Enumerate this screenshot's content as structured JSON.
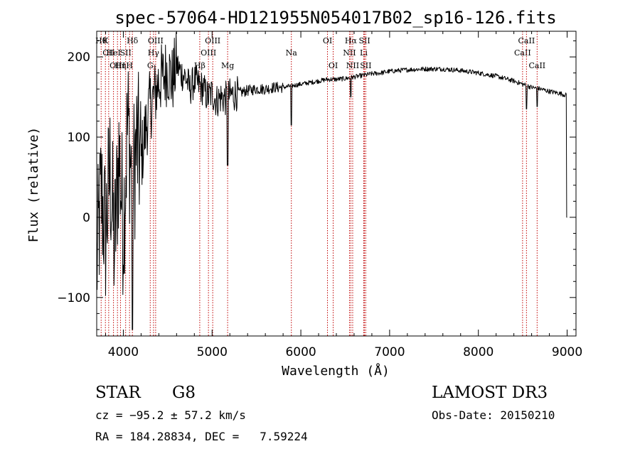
{
  "chart_data": {
    "type": "line",
    "title": "spec-57064-HD121955N054017B02_sp16-126.fits",
    "xlabel": "Wavelength (Å)",
    "ylabel": "Flux (relative)",
    "xlim": [
      3700,
      9100
    ],
    "ylim": [
      -148,
      232
    ],
    "xticks": [
      4000,
      5000,
      6000,
      7000,
      8000,
      9000
    ],
    "yticks": [
      -100,
      0,
      100,
      200
    ],
    "grid": false,
    "series": [
      {
        "name": "flux",
        "x": [
          3700,
          3750,
          3800,
          3850,
          3900,
          3950,
          4000,
          4050,
          4100,
          4150,
          4200,
          4250,
          4300,
          4350,
          4400,
          4450,
          4500,
          4550,
          4600,
          4650,
          4700,
          4750,
          4800,
          4850,
          4900,
          4950,
          5000,
          5050,
          5100,
          5150,
          5200,
          5300,
          5400,
          5500,
          5600,
          5700,
          5800,
          5900,
          6000,
          6100,
          6200,
          6300,
          6400,
          6500,
          6600,
          6700,
          6800,
          6900,
          7000,
          7200,
          7400,
          7600,
          7800,
          8000,
          8200,
          8400,
          8500,
          8600,
          8700,
          8800,
          8900,
          9000
        ],
        "y": [
          -60,
          30,
          -20,
          60,
          -40,
          80,
          -10,
          120,
          40,
          90,
          70,
          110,
          140,
          150,
          170,
          175,
          185,
          170,
          190,
          180,
          175,
          160,
          170,
          165,
          160,
          150,
          155,
          145,
          150,
          148,
          152,
          155,
          158,
          160,
          160,
          162,
          162,
          164,
          166,
          168,
          170,
          172,
          172,
          173,
          175,
          177,
          179,
          180,
          182,
          184,
          185,
          185,
          183,
          180,
          176,
          170,
          166,
          162,
          160,
          157,
          155,
          152
        ]
      }
    ],
    "annotations": {
      "notable_dips": [
        {
          "x": 4102,
          "y": -140
        },
        {
          "x": 5175,
          "y": 65
        },
        {
          "x": 5892,
          "y": 115
        },
        {
          "x": 6563,
          "y": 150
        },
        {
          "x": 8542,
          "y": 135
        },
        {
          "x": 8662,
          "y": 138
        },
        {
          "x": 9000,
          "y": 0
        }
      ],
      "line_markers": [
        {
          "wl": 3750,
          "row": 1,
          "label": "Hθ"
        },
        {
          "wl": 3798,
          "row": 1,
          "label": "K"
        },
        {
          "wl": 3835,
          "row": 2,
          "label": "CII"
        },
        {
          "wl": 3889,
          "row": 2,
          "label": "HeI"
        },
        {
          "wl": 3934,
          "row": 3,
          "label": "OIII"
        },
        {
          "wl": 3968,
          "row": 3,
          "label": "Hη"
        },
        {
          "wl": 4026,
          "row": 2,
          "label": "SII"
        },
        {
          "wl": 4070,
          "row": 3,
          "label": "H"
        },
        {
          "wl": 4102,
          "row": 1,
          "label": "Hδ"
        },
        {
          "wl": 4303,
          "row": 3,
          "label": "G"
        },
        {
          "wl": 4340,
          "row": 2,
          "label": "Hγ"
        },
        {
          "wl": 4364,
          "row": 1,
          "label": "OIII"
        },
        {
          "wl": 4861,
          "row": 3,
          "label": "Hβ"
        },
        {
          "wl": 4959,
          "row": 2,
          "label": "OIII"
        },
        {
          "wl": 5007,
          "row": 1,
          "label": "OIII"
        },
        {
          "wl": 5175,
          "row": 3,
          "label": "Mg"
        },
        {
          "wl": 5893,
          "row": 2,
          "label": "Na"
        },
        {
          "wl": 6300,
          "row": 1,
          "label": "OI"
        },
        {
          "wl": 6364,
          "row": 3,
          "label": "OI"
        },
        {
          "wl": 6548,
          "row": 2,
          "label": "NII"
        },
        {
          "wl": 6563,
          "row": 1,
          "label": "Hα"
        },
        {
          "wl": 6584,
          "row": 3,
          "label": "NII"
        },
        {
          "wl": 6708,
          "row": 2,
          "label": "Li"
        },
        {
          "wl": 6717,
          "row": 1,
          "label": "SII"
        },
        {
          "wl": 6731,
          "row": 3,
          "label": "SII"
        },
        {
          "wl": 8498,
          "row": 2,
          "label": "CaII"
        },
        {
          "wl": 8542,
          "row": 1,
          "label": "CaII"
        },
        {
          "wl": 8662,
          "row": 3,
          "label": "CaII"
        }
      ]
    }
  },
  "info": {
    "class_label": "STAR",
    "subclass": "G8",
    "survey": "LAMOST DR3",
    "cz": "cz = −95.2 ± 57.2 km/s",
    "obs_date": "Obs-Date: 20150210",
    "coords": "RA = 184.28834, DEC =   7.59224"
  }
}
